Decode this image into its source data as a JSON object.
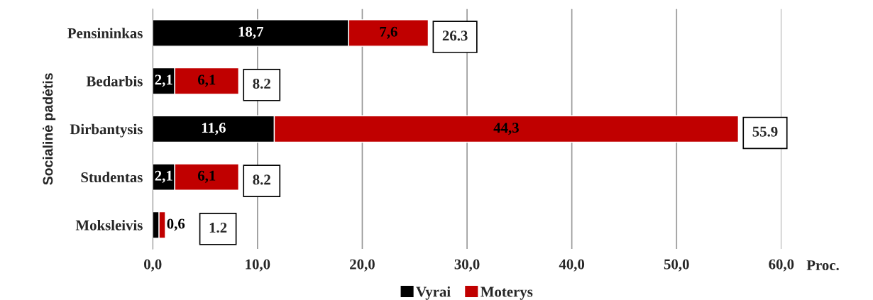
{
  "chart_data": {
    "type": "bar",
    "orientation": "horizontal",
    "stacked": true,
    "categories": [
      "Pensininkas",
      "Bedarbis",
      "Dirbantysis",
      "Studentas",
      "Moksleivis"
    ],
    "series": [
      {
        "name": "Vyrai",
        "color": "#000000",
        "values": [
          18.7,
          2.1,
          11.6,
          2.1,
          0.6
        ],
        "value_labels": [
          "18,7",
          "2,1",
          "11,6",
          "2,1",
          null
        ]
      },
      {
        "name": "Moterys",
        "color": "#c00000",
        "values": [
          7.6,
          6.1,
          44.3,
          6.1,
          0.6
        ],
        "value_labels": [
          "7,6",
          "6,1",
          "44,3",
          "6,1",
          "0,6"
        ]
      }
    ],
    "totals": [
      "26.3",
      "8.2",
      "55.9",
      "8.2",
      "1.2"
    ],
    "xlim": [
      0,
      60
    ],
    "xticks": [
      {
        "value": 0,
        "label": "0,0"
      },
      {
        "value": 10,
        "label": "10,0"
      },
      {
        "value": 20,
        "label": "20,0"
      },
      {
        "value": 30,
        "label": "30,0"
      },
      {
        "value": 40,
        "label": "40,0"
      },
      {
        "value": 50,
        "label": "50,0"
      },
      {
        "value": 60,
        "label": "60,0"
      }
    ],
    "xlabel": "Proc.",
    "ylabel": "Socialinė padėtis",
    "grid": "x",
    "legend": "bottom"
  }
}
